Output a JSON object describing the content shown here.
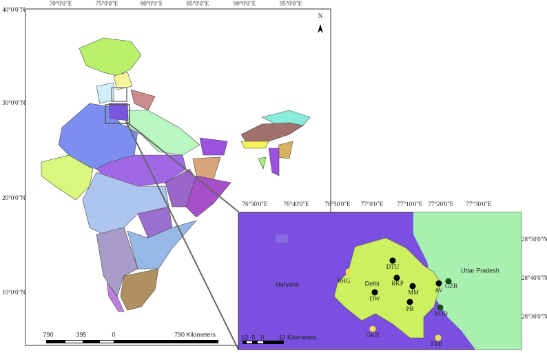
{
  "main_map": {
    "lon_labels": [
      "70°0'0\"E",
      "75°0'0\"E",
      "80°0'0\"E",
      "85°0'0\"E",
      "90°0'0\"E",
      "95°0'0\"E"
    ],
    "lat_labels": [
      "40°0'0\"N",
      "30°0'0\"N",
      "20°0'0\"N",
      "10°0'0\"N"
    ],
    "north": "N",
    "scale_labels": [
      "790",
      "395",
      "0",
      "790 Kilometers"
    ]
  },
  "inset": {
    "lon_labels": [
      "76°30'0\"E",
      "76°40'0\"E",
      "76°50'0\"E",
      "77°0'0\"E",
      "77°10'0\"E",
      "77°20'0\"E",
      "77°30'0\"E"
    ],
    "lat_labels": [
      "28°50'0\"N",
      "28°40'0\"N",
      "28°30'0\"N"
    ],
    "regions": [
      "Haryana",
      "Delhi",
      "Uttar Pradesh"
    ],
    "stations": [
      "DTU",
      "RKP",
      "MM",
      "AV",
      "GZB",
      "PB",
      "NOD",
      "DW",
      "BHG",
      "GRN",
      "FRB"
    ],
    "scale_labels": [
      "10",
      "5",
      "0",
      "10 Kilometers"
    ]
  }
}
